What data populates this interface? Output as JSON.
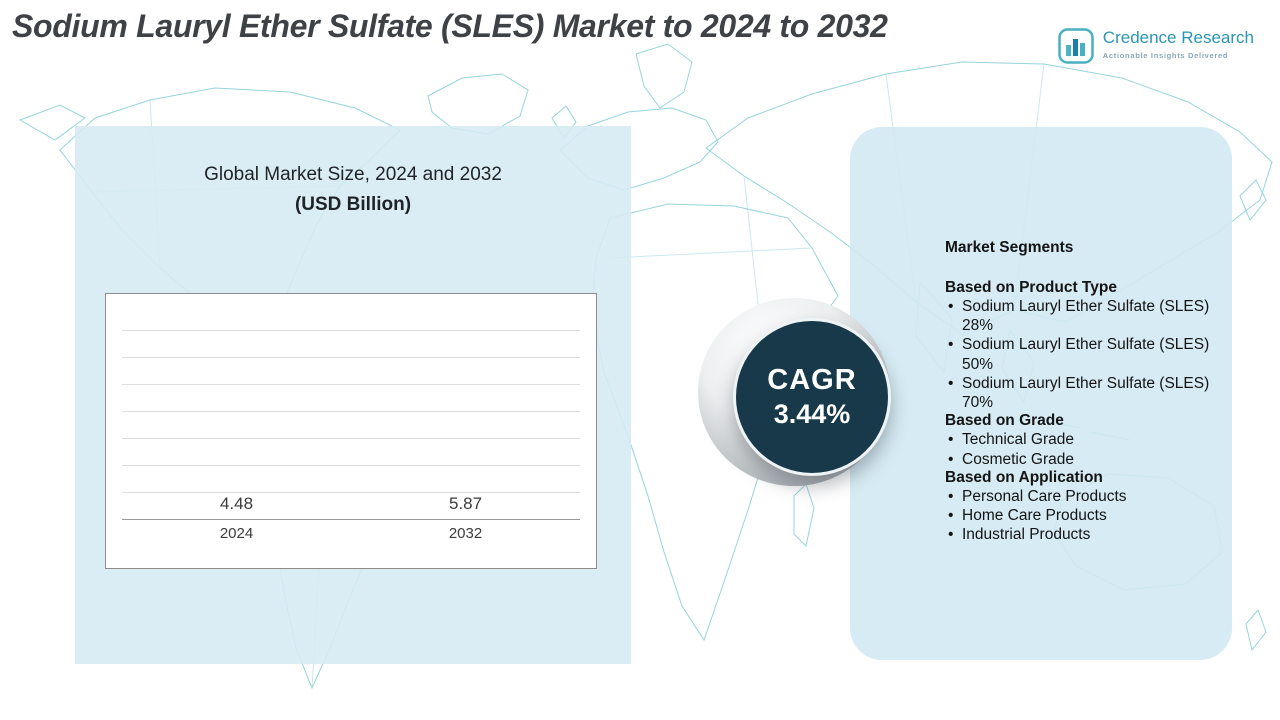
{
  "header": {
    "title": "Sodium Lauryl Ether Sulfate (SLES) Market to 2024 to 2032",
    "logo": {
      "name": "Credence Research",
      "tagline": "Actionable Insights Delivered"
    }
  },
  "chart_data": {
    "type": "bar",
    "title": "Global Market Size, 2024 and 2032",
    "subtitle": "(USD Billion)",
    "categories": [
      "2024",
      "2032"
    ],
    "values": [
      4.48,
      5.87
    ],
    "labels": [
      "4.48",
      "5.87"
    ],
    "bar_colors": [
      "#3aa6a2",
      "#1f85b5"
    ],
    "ylim": [
      3.25,
      6.4
    ],
    "grid": true,
    "legend": "none"
  },
  "cagr": {
    "label": "CAGR",
    "value": "3.44%"
  },
  "segments": {
    "title": "Market Segments",
    "groups": [
      {
        "heading": "Based on Product Type",
        "items": [
          "Sodium Lauryl Ether Sulfate (SLES) 28%",
          "Sodium Lauryl Ether Sulfate (SLES) 50%",
          "Sodium Lauryl Ether Sulfate (SLES) 70%"
        ]
      },
      {
        "heading": "Based on Grade",
        "items": [
          "Technical Grade",
          "Cosmetic Grade"
        ]
      },
      {
        "heading": "Based on Application",
        "items": [
          "Personal Care Products",
          "Home Care Products",
          "Industrial Products"
        ]
      }
    ]
  },
  "colors": {
    "teal_bar": "#3aa6a2",
    "blue_bar": "#1f85b5",
    "cagr_circle": "#17394a",
    "panel_bg": "#d5ebf3",
    "map_line": "#84cdd8",
    "brand_blue": "#2a95b8"
  }
}
